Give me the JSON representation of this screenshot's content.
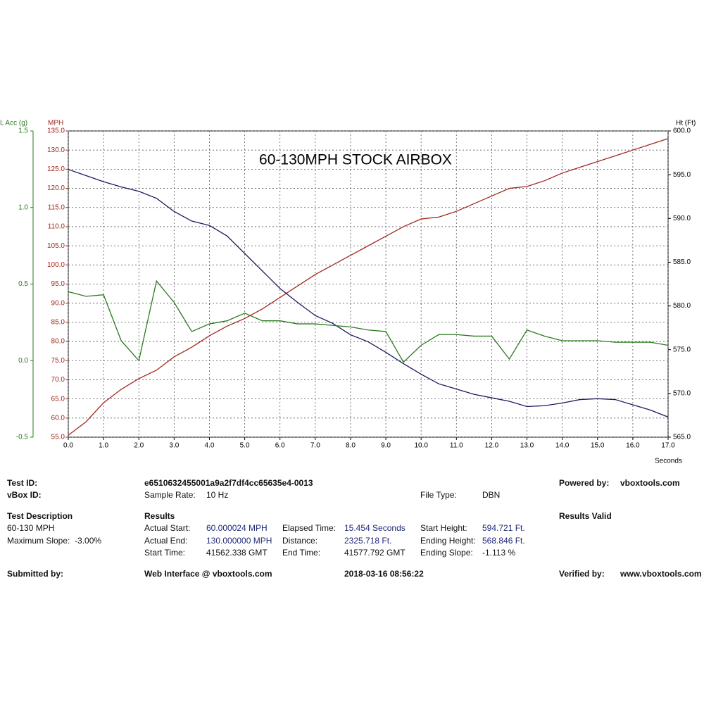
{
  "chart_data": {
    "type": "line",
    "title": "60-130MPH STOCK AIRBOX",
    "xlabel": "Seconds",
    "ylabel": "MPH",
    "y2label": "Ht (Ft)",
    "y3label": "L Acc (g)",
    "x": [
      0,
      0.5,
      1,
      1.5,
      2,
      2.5,
      3,
      3.5,
      4,
      4.5,
      5,
      5.5,
      6,
      6.5,
      7,
      7.5,
      8,
      8.5,
      9,
      9.5,
      10,
      10.5,
      11,
      11.5,
      12,
      12.5,
      13,
      13.5,
      14,
      14.5,
      15,
      15.5,
      16,
      16.5,
      17
    ],
    "series": [
      {
        "axis": "y",
        "color": "#a0281e",
        "values": [
          55.5,
          59,
          64,
          67.5,
          70.3,
          72.5,
          76,
          78.5,
          81.5,
          84,
          86,
          88.5,
          91.5,
          94.5,
          97.5,
          100,
          102.5,
          105,
          107.5,
          110,
          112,
          112.5,
          114,
          116,
          118,
          120,
          120.5,
          122,
          124,
          125.5,
          127,
          128.5,
          130,
          131.5,
          133
        ]
      },
      {
        "axis": "y2",
        "color": "#1a1a5e",
        "values": [
          595.6,
          594.9,
          594.2,
          593.6,
          593.1,
          592.3,
          590.8,
          589.7,
          589.2,
          588.0,
          586.0,
          584.0,
          582.0,
          580.4,
          578.9,
          578.0,
          576.7,
          575.9,
          574.7,
          573.4,
          572.2,
          571.1,
          570.5,
          569.9,
          569.5,
          569.1,
          568.5,
          568.6,
          568.9,
          569.3,
          569.4,
          569.3,
          568.7,
          568.1,
          567.3
        ]
      },
      {
        "axis": "y3",
        "color": "#2a7a1e",
        "values": [
          0.45,
          0.42,
          0.43,
          0.13,
          0.0,
          0.52,
          0.38,
          0.19,
          0.24,
          0.26,
          0.31,
          0.26,
          0.26,
          0.24,
          0.24,
          0.23,
          0.22,
          0.2,
          0.19,
          -0.01,
          0.1,
          0.17,
          0.17,
          0.16,
          0.16,
          0.01,
          0.2,
          0.16,
          0.13,
          0.13,
          0.13,
          0.12,
          0.12,
          0.12,
          0.1
        ]
      }
    ],
    "xlim": [
      0,
      17
    ],
    "xticks": [
      {
        "value": 0,
        "label": "0.0"
      },
      {
        "value": 1,
        "label": "1.0"
      },
      {
        "value": 2,
        "label": "2.0"
      },
      {
        "value": 3,
        "label": "3.0"
      },
      {
        "value": 4,
        "label": "4.0"
      },
      {
        "value": 5,
        "label": "5.0"
      },
      {
        "value": 6,
        "label": "6.0"
      },
      {
        "value": 7,
        "label": "7.0"
      },
      {
        "value": 8,
        "label": "8.0"
      },
      {
        "value": 9,
        "label": "9.0"
      },
      {
        "value": 10,
        "label": "10.0"
      },
      {
        "value": 11,
        "label": "11.0"
      },
      {
        "value": 12,
        "label": "12.0"
      },
      {
        "value": 13,
        "label": "13.0"
      },
      {
        "value": 14,
        "label": "14.0"
      },
      {
        "value": 15,
        "label": "15.0"
      },
      {
        "value": 16,
        "label": "16.0"
      },
      {
        "value": 17,
        "label": "17.0"
      }
    ],
    "ylim": [
      55,
      135
    ],
    "yticks": [
      {
        "value": 55,
        "label": "55.0"
      },
      {
        "value": 60,
        "label": "60.0"
      },
      {
        "value": 65,
        "label": "65.0"
      },
      {
        "value": 70,
        "label": "70.0"
      },
      {
        "value": 75,
        "label": "75.0"
      },
      {
        "value": 80,
        "label": "80.0"
      },
      {
        "value": 85,
        "label": "85.0"
      },
      {
        "value": 90,
        "label": "90.0"
      },
      {
        "value": 95,
        "label": "95.0"
      },
      {
        "value": 100,
        "label": "100.0"
      },
      {
        "value": 105,
        "label": "105.0"
      },
      {
        "value": 110,
        "label": "110.0"
      },
      {
        "value": 115,
        "label": "115.0"
      },
      {
        "value": 120,
        "label": "120.0"
      },
      {
        "value": 125,
        "label": "125.0"
      },
      {
        "value": 130,
        "label": "130.0"
      },
      {
        "value": 135,
        "label": "135.0"
      }
    ],
    "y2lim": [
      565,
      600
    ],
    "y2ticks": [
      {
        "value": 565,
        "label": "565.0"
      },
      {
        "value": 570,
        "label": "570.0"
      },
      {
        "value": 575,
        "label": "575.0"
      },
      {
        "value": 580,
        "label": "580.0"
      },
      {
        "value": 585,
        "label": "585.0"
      },
      {
        "value": 590,
        "label": "590.0"
      },
      {
        "value": 595,
        "label": "595.0"
      },
      {
        "value": 600,
        "label": "600.0"
      }
    ],
    "y3lim": [
      -0.5,
      1.5
    ],
    "y3ticks": [
      -0.5,
      {
        "value": 0,
        "label": "0.0"
      },
      0.5,
      {
        "value": 1,
        "label": "1.0"
      },
      1.5
    ],
    "grid": true
  },
  "report": {
    "test_id": {
      "label": "Test ID:",
      "value": "e6510632455001a9a2f7df4cc65635e4-0013"
    },
    "vbox_id": {
      "label": "vBox ID:"
    },
    "sample_rate": {
      "label": "Sample Rate:",
      "value": "10 Hz"
    },
    "file_type": {
      "label": "File Type:",
      "value": "DBN"
    },
    "powered_by": {
      "label": "Powered by:",
      "value": "vboxtools.com"
    },
    "test_description": {
      "heading": "Test Description",
      "lines": [
        "60-130 MPH",
        "Maximum Slope:  -3.00%"
      ]
    },
    "results": {
      "heading": "Results",
      "items": [
        {
          "label": "Actual Start:",
          "value": "60.000024 MPH"
        },
        {
          "label": "Actual End:",
          "value": "130.000000 MPH"
        },
        {
          "label": "Start Time:",
          "value": "41562.338 GMT"
        },
        {
          "label": "Elapsed Time:",
          "value": "15.454 Seconds"
        },
        {
          "label": "Distance:",
          "value": "2325.718 Ft."
        },
        {
          "label": "End Time:",
          "value": "41577.792 GMT"
        },
        {
          "label": "Start Height:",
          "value": "594.721 Ft."
        },
        {
          "label": "Ending Height:",
          "value": "568.846 Ft."
        },
        {
          "label": "Ending Slope:",
          "value": "-1.113 %"
        }
      ]
    },
    "results_valid": "Results Valid",
    "submitted_by": "Submitted by:",
    "web_interface": "Web Interface @ vboxtools.com",
    "timestamp": "2018-03-16 08:56:22",
    "verified_by": {
      "label": "Verified by:",
      "value": "www.vboxtools.com"
    }
  }
}
